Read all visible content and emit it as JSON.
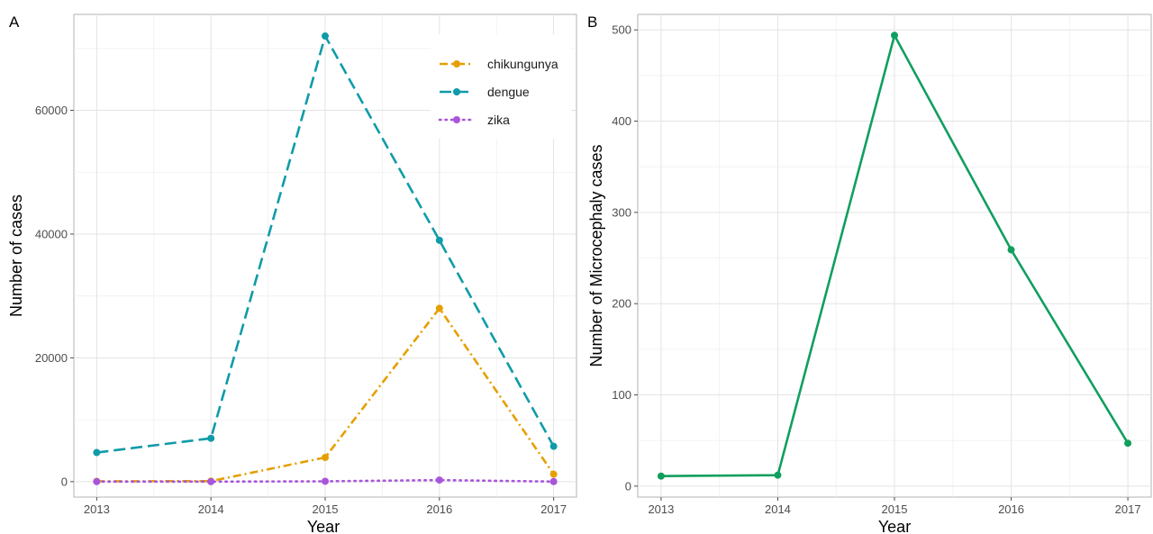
{
  "chart_data": [
    {
      "type": "line",
      "panel_tag": "A",
      "x": [
        2013,
        2014,
        2015,
        2016,
        2017
      ],
      "xlabel": "Year",
      "ylabel": "Number of cases",
      "xlim": [
        2012.8,
        2017.2
      ],
      "ylim": [
        -2500,
        75500
      ],
      "yticks": [
        0,
        20000,
        40000,
        60000
      ],
      "grid": true,
      "legend_position": "top-right",
      "series": [
        {
          "name": "chikungunya",
          "color": "#E69F00",
          "dash": "dashdot",
          "values": [
            50,
            80,
            3900,
            28000,
            1200
          ]
        },
        {
          "name": "dengue",
          "color": "#0F9BA8",
          "dash": "longdash",
          "values": [
            4700,
            7000,
            72000,
            39000,
            5700
          ]
        },
        {
          "name": "zika",
          "color": "#A855DB",
          "dash": "dotted",
          "values": [
            0,
            0,
            50,
            250,
            10
          ]
        }
      ]
    },
    {
      "type": "line",
      "panel_tag": "B",
      "x": [
        2013,
        2014,
        2015,
        2016,
        2017
      ],
      "xlabel": "Year",
      "ylabel": "Number of Microcephaly cases",
      "xlim": [
        2012.8,
        2017.2
      ],
      "ylim": [
        -12,
        517
      ],
      "yticks": [
        0,
        100,
        200,
        300,
        400,
        500
      ],
      "grid": true,
      "series": [
        {
          "name": "",
          "color": "#109F5E",
          "dash": "solid",
          "values": [
            11,
            12,
            494,
            259,
            47
          ]
        }
      ]
    }
  ]
}
